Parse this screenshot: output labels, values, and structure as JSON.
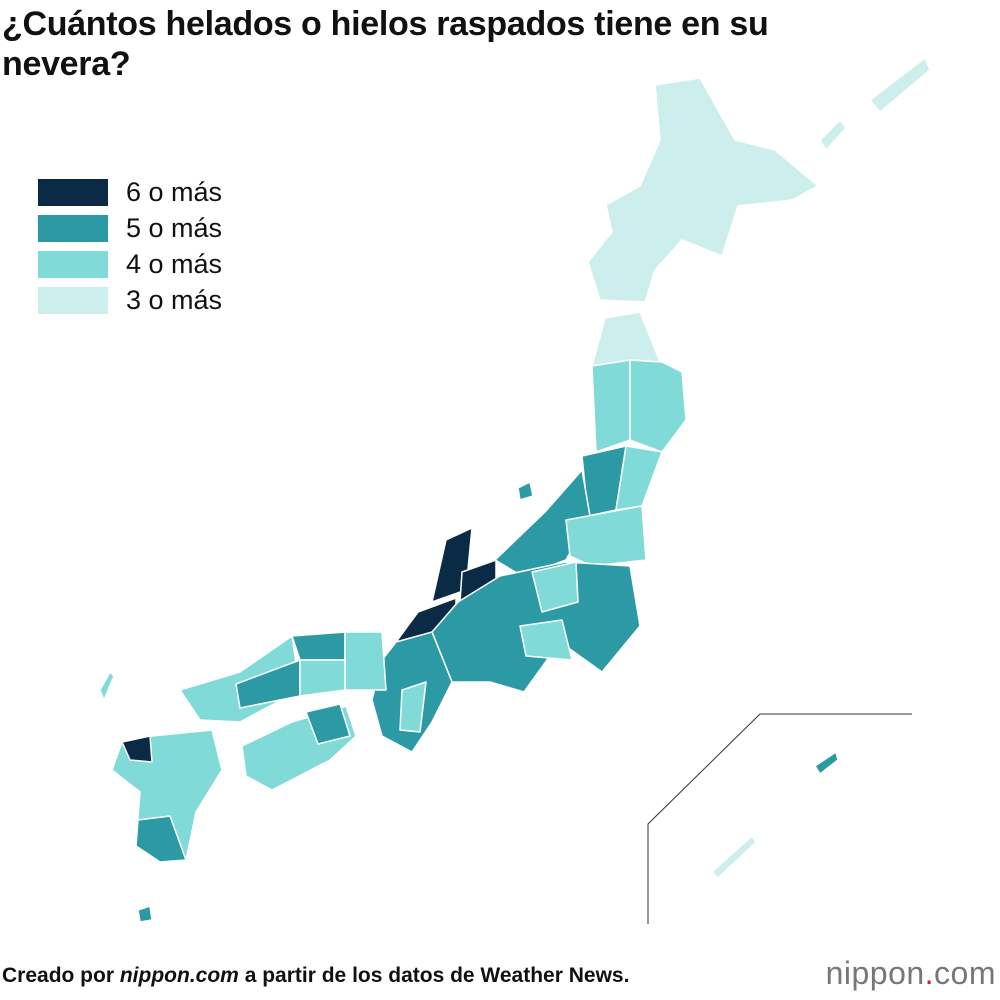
{
  "header": {
    "title": "¿Cuántos helados o hielos raspados tiene en su nevera?"
  },
  "legend": [
    {
      "label": "6 o más",
      "color": "#0b2a45"
    },
    {
      "label": "5 o más",
      "color": "#2b9aa5"
    },
    {
      "label": "4 o más",
      "color": "#7fdad8"
    },
    {
      "label": "3 o más",
      "color": "#ccefee"
    }
  ],
  "footer": {
    "before": "Creado por ",
    "source": "nippon.com",
    "after": " a partir de los datos de Weather News."
  },
  "logo": {
    "name": "nippon",
    "dot": ".",
    "suffix": "com"
  }
}
